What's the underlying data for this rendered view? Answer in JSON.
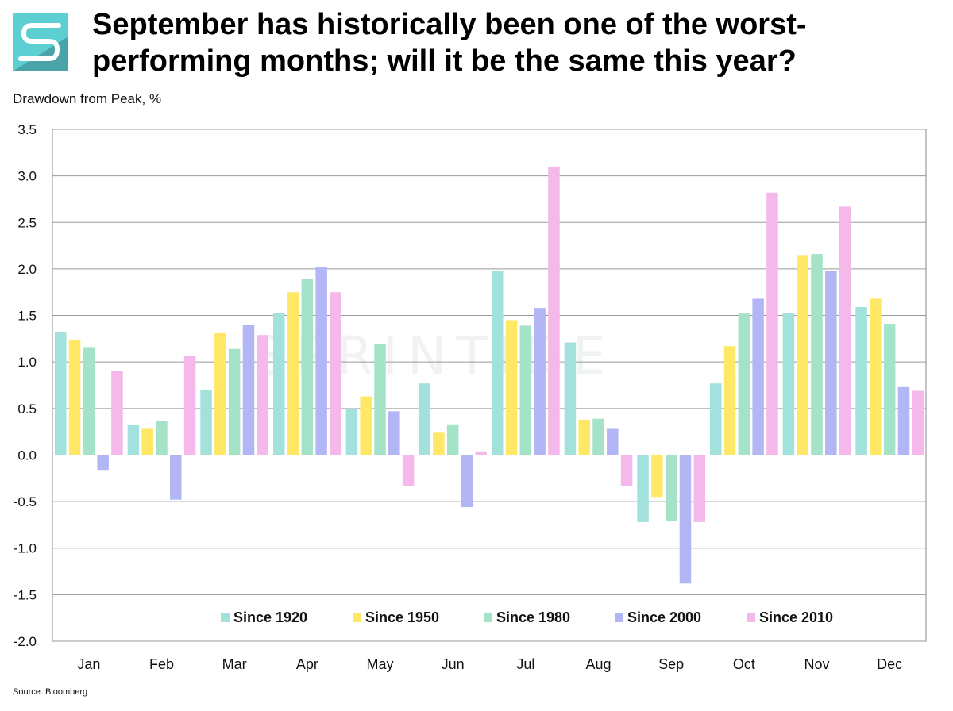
{
  "header": {
    "title_line1": "September has historically been one of the worst-",
    "title_line2": "performing months; will it be the same this year?"
  },
  "logo": {
    "icon": "sprintide-logo-icon",
    "colors": [
      "#5ccfd3",
      "#4aa3a8"
    ]
  },
  "watermark": {
    "text": "SPRINTIDE"
  },
  "footer": {
    "source": "Source: Bloomberg"
  },
  "chart_data": {
    "type": "bar",
    "ylabel": "Drawdown from Peak, %",
    "xlabel": "",
    "ylim": [
      -2.0,
      3.5
    ],
    "yticks": [
      3.5,
      3.0,
      2.5,
      2.0,
      1.5,
      1.0,
      0.5,
      0.0,
      -0.5,
      -1.0,
      -1.5,
      -2.0
    ],
    "ytick_labels": [
      "3.5",
      "3.0",
      "2.5",
      "2.0",
      "1.5",
      "1.0",
      "0.5",
      "0.0",
      "-0.5",
      "-1.0",
      "-1.5",
      "-2.0"
    ],
    "grid": true,
    "legend_position": "bottom-center-inside",
    "categories": [
      "Jan",
      "Feb",
      "Mar",
      "Apr",
      "May",
      "Jun",
      "Jul",
      "Aug",
      "Sep",
      "Oct",
      "Nov",
      "Dec"
    ],
    "series": [
      {
        "name": "Since 1920",
        "color": "#a3e1dd",
        "values": [
          1.32,
          0.32,
          0.7,
          1.53,
          0.5,
          0.77,
          1.98,
          1.21,
          -0.72,
          0.77,
          1.53,
          1.59
        ]
      },
      {
        "name": "Since 1950",
        "color": "#ffe866",
        "values": [
          1.24,
          0.29,
          1.31,
          1.75,
          0.63,
          0.24,
          1.45,
          0.38,
          -0.45,
          1.17,
          2.15,
          1.68
        ]
      },
      {
        "name": "Since 1980",
        "color": "#a4e3c7",
        "values": [
          1.16,
          0.37,
          1.14,
          1.89,
          1.19,
          0.33,
          1.39,
          0.39,
          -0.71,
          1.52,
          2.16,
          1.41
        ]
      },
      {
        "name": "Since 2000",
        "color": "#b3b6f4",
        "values": [
          -0.16,
          -0.48,
          1.4,
          2.02,
          0.47,
          -0.56,
          1.58,
          0.29,
          -1.38,
          1.68,
          1.98,
          0.73
        ]
      },
      {
        "name": "Since 2010",
        "color": "#f5b8ea",
        "values": [
          0.9,
          1.07,
          1.29,
          1.75,
          -0.33,
          0.04,
          3.1,
          -0.33,
          -0.72,
          2.82,
          2.67,
          0.69
        ]
      }
    ]
  }
}
